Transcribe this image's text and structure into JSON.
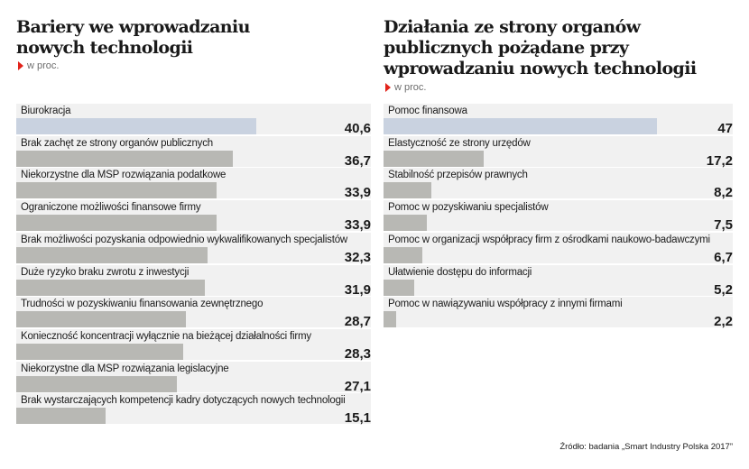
{
  "chart_data": [
    {
      "type": "bar",
      "orientation": "horizontal",
      "title": "Bariery we wprowadzaniu nowych technologii",
      "subtitle": "w proc.",
      "highlight_color": "#c9d2e0",
      "bar_color": "#b8b8b4",
      "xlim": [
        0,
        60
      ],
      "categories": [
        "Biurokracja",
        "Brak zachęt ze strony organów publicznych",
        "Niekorzystne dla MSP rozwiązania podatkowe",
        "Ograniczone możliwości finansowe firmy",
        "Brak możliwości pozyskania odpowiednio wykwalifikowanych specjalistów",
        "Duże ryzyko braku zwrotu z inwestycji",
        "Trudności w pozyskiwaniu finansowania zewnętrznego",
        "Konieczność koncentracji wyłącznie na bieżącej działalności firmy",
        "Niekorzystne dla MSP rozwiązania legislacyjne",
        "Brak wystarczających kompetencji kadry dotyczących nowych technologii"
      ],
      "values": [
        40.6,
        36.7,
        33.9,
        33.9,
        32.3,
        31.9,
        28.7,
        28.3,
        27.1,
        15.1
      ],
      "value_labels": [
        "40,6",
        "36,7",
        "33,9",
        "33,9",
        "32,3",
        "31,9",
        "28,7",
        "28,3",
        "27,1",
        "15,1"
      ]
    },
    {
      "type": "bar",
      "orientation": "horizontal",
      "title": "Działania ze strony organów publicznych pożądane przy wprowadzaniu nowych technologii",
      "subtitle": "w proc.",
      "highlight_color": "#c9d2e0",
      "bar_color": "#b8b8b4",
      "xlim": [
        0,
        60
      ],
      "categories": [
        "Pomoc finansowa",
        "Elastyczność ze strony urzędów",
        "Stabilność przepisów prawnych",
        "Pomoc w pozyskiwaniu specjalistów",
        "Pomoc w organizacji współpracy firm z ośrodkami naukowo-badawczymi",
        "Ułatwienie dostępu do informacji",
        "Pomoc w nawiązywaniu współpracy z innymi firmami"
      ],
      "values": [
        47,
        17.2,
        8.2,
        7.5,
        6.7,
        5.2,
        2.2
      ],
      "value_labels": [
        "47",
        "17,2",
        "8,2",
        "7,5",
        "6,7",
        "5,2",
        "2,2"
      ]
    }
  ],
  "source": "Źródło: badania „Smart Industry Polska 2017”"
}
